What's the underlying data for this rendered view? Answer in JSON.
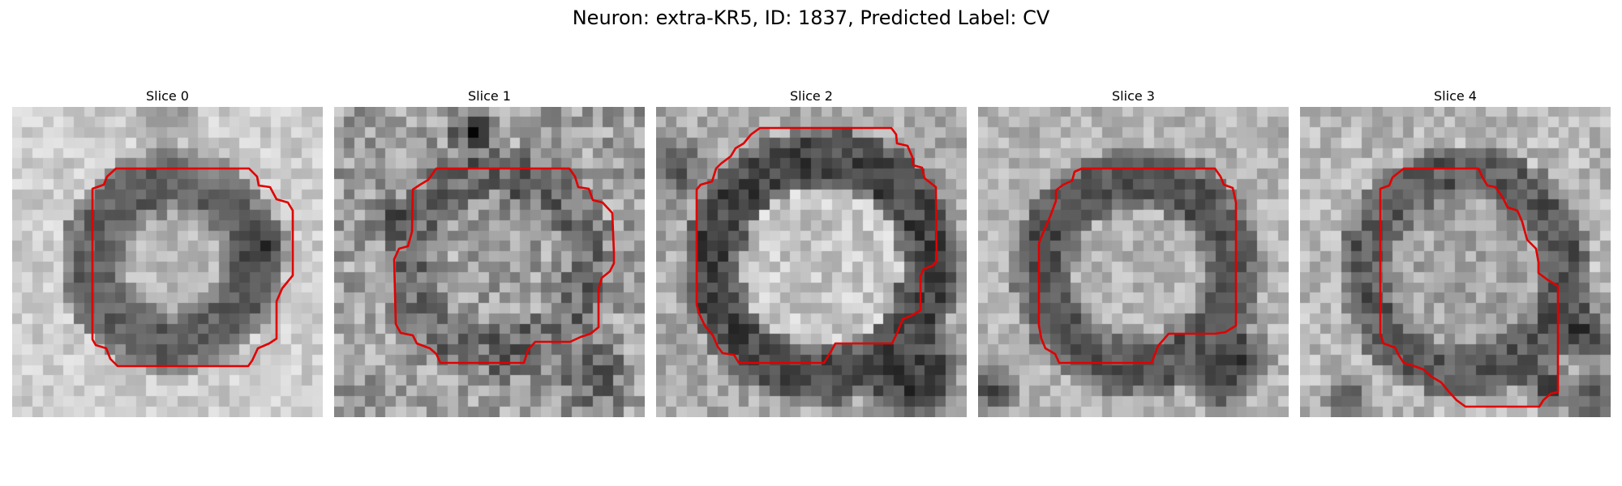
{
  "figure": {
    "title": "Neuron: extra-KR5, ID: 1837, Predicted Label: CV",
    "contour_color": "#e00000",
    "colormap": "grayscale",
    "panels": [
      {
        "title": "Slice 0"
      },
      {
        "title": "Slice 1"
      },
      {
        "title": "Slice 2"
      },
      {
        "title": "Slice 3"
      },
      {
        "title": "Slice 4"
      }
    ]
  }
}
